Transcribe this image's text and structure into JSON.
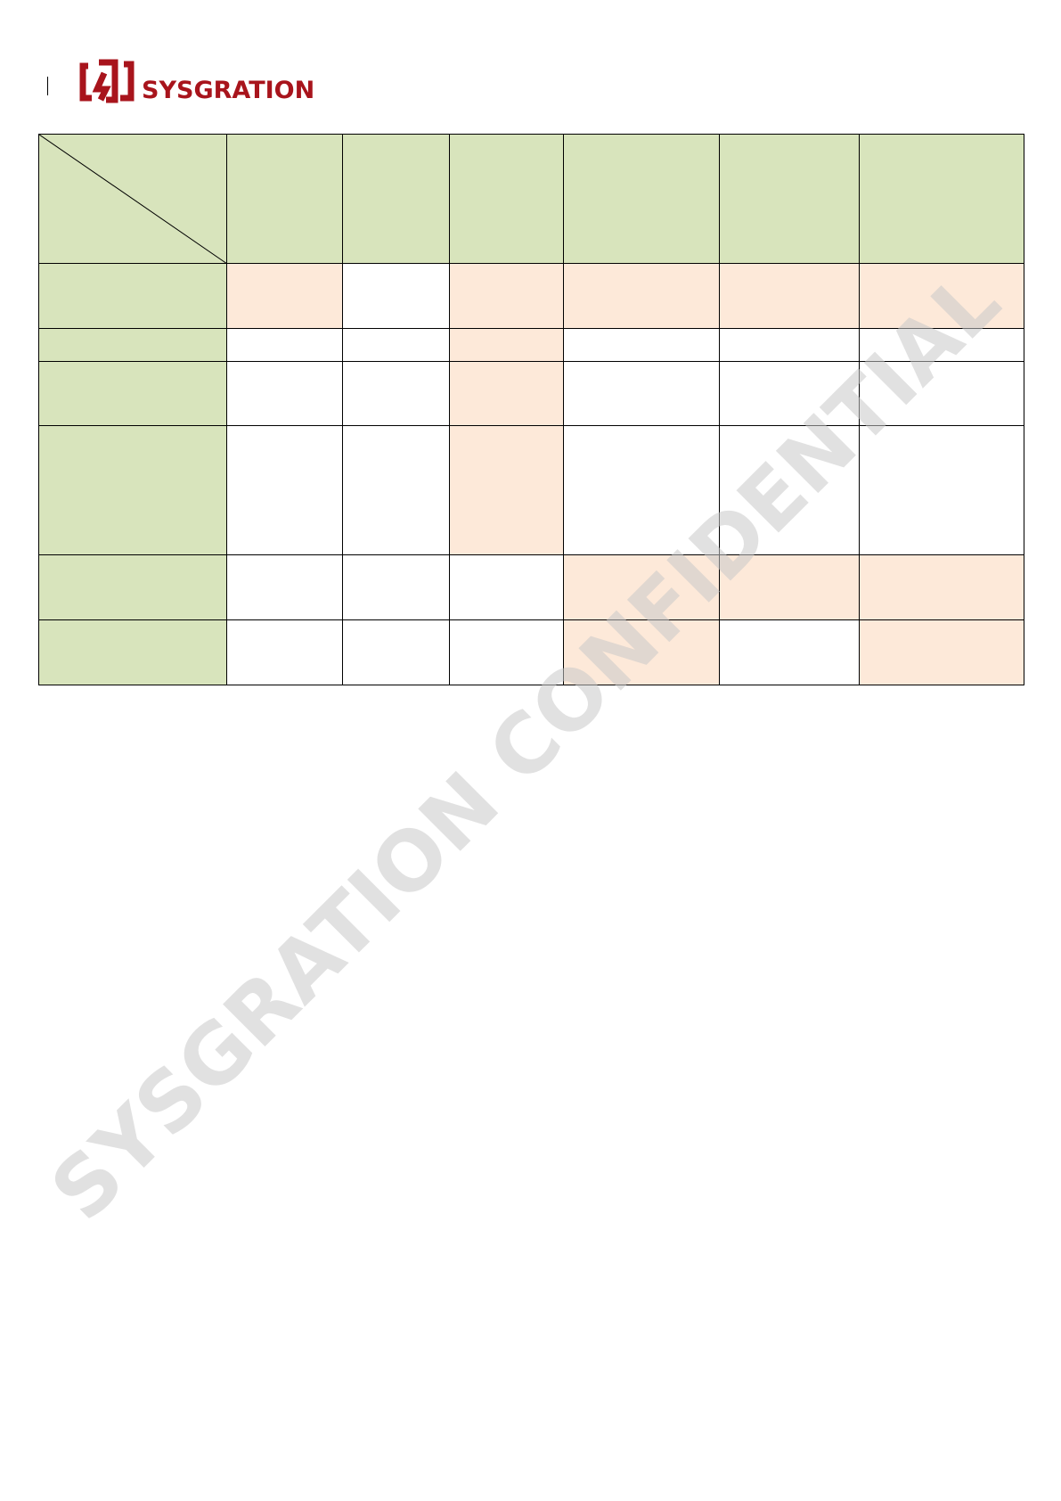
{
  "header": {
    "logo_text": "SYSGRATION",
    "brand_color": "#a8141c"
  },
  "watermark": {
    "text": "SYSGRATION CONFIDENTIAL"
  },
  "table": {
    "header_fill": "#d8e4bc",
    "highlight_fill": "#fde9d9",
    "columns": [
      "",
      "",
      "",
      "",
      "",
      "",
      ""
    ],
    "rows": [
      {
        "label": "",
        "highlighted": [
          1,
          3,
          4,
          5,
          6
        ]
      },
      {
        "label": "",
        "highlighted": [
          3
        ]
      },
      {
        "label": "",
        "highlighted": [
          3
        ]
      },
      {
        "label": "",
        "highlighted": [
          3
        ]
      },
      {
        "label": "",
        "highlighted": [
          4,
          5,
          6
        ]
      },
      {
        "label": "",
        "highlighted": [
          4,
          6
        ]
      }
    ]
  }
}
